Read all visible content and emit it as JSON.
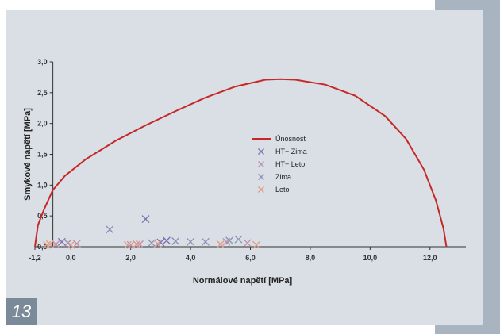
{
  "figure_number": "13",
  "chart_data": {
    "type": "scatter",
    "xlabel": "Normálové napětí [MPa]",
    "ylabel": "Smykové napětí [MPa]",
    "xlim": [
      -1.2,
      13.2
    ],
    "ylim": [
      0,
      3.0
    ],
    "x_ticks": [
      "-1,2",
      "0,0",
      "2,0",
      "4,0",
      "6,0",
      "8,0",
      "10,0",
      "12,0"
    ],
    "x_tick_values": [
      -1.2,
      0,
      2,
      4,
      6,
      8,
      10,
      12
    ],
    "y_ticks": [
      "0,0",
      "0,5",
      "1,0",
      "1,5",
      "2,0",
      "2,5",
      "3,0"
    ],
    "y_tick_values": [
      0,
      0.5,
      1.0,
      1.5,
      2.0,
      2.5,
      3.0
    ],
    "legend_position": "right-center",
    "series": [
      {
        "name": "Únosnost",
        "kind": "line",
        "color": "#c62828",
        "x": [
          -1.2,
          -1.1,
          -0.9,
          -0.6,
          -0.2,
          0.5,
          1.5,
          2.5,
          3.5,
          4.5,
          5.5,
          6.5,
          7.0,
          7.5,
          8.5,
          9.5,
          10.5,
          11.2,
          11.8,
          12.2,
          12.45,
          12.55
        ],
        "y": [
          0.0,
          0.35,
          0.6,
          0.92,
          1.15,
          1.42,
          1.72,
          1.97,
          2.2,
          2.42,
          2.6,
          2.71,
          2.72,
          2.71,
          2.63,
          2.45,
          2.12,
          1.75,
          1.25,
          0.75,
          0.3,
          0.0
        ]
      },
      {
        "name": "HT+ Zima",
        "kind": "scatter",
        "color": "#7a6fb0",
        "x": [
          -0.3,
          2.5,
          3.0,
          3.2
        ],
        "y": [
          0.08,
          0.45,
          0.07,
          0.1
        ]
      },
      {
        "name": "HT+ Leto",
        "kind": "scatter",
        "color": "#c08fa8",
        "x": [
          -0.5,
          0.2,
          2.0,
          2.3,
          5.2,
          5.9
        ],
        "y": [
          0.04,
          0.05,
          0.03,
          0.04,
          0.08,
          0.06
        ]
      },
      {
        "name": "Zima",
        "kind": "scatter",
        "color": "#8a91b8",
        "x": [
          -0.1,
          1.3,
          2.7,
          3.5,
          4.0,
          4.5,
          5.3,
          5.6
        ],
        "y": [
          0.06,
          0.28,
          0.06,
          0.09,
          0.08,
          0.08,
          0.1,
          0.12
        ]
      },
      {
        "name": "Leto",
        "kind": "scatter",
        "color": "#e09a85",
        "x": [
          -0.8,
          -0.7,
          0.0,
          1.9,
          2.2,
          2.9,
          5.0,
          6.2
        ],
        "y": [
          0.03,
          0.04,
          0.03,
          0.03,
          0.04,
          0.05,
          0.04,
          0.03
        ]
      }
    ]
  }
}
